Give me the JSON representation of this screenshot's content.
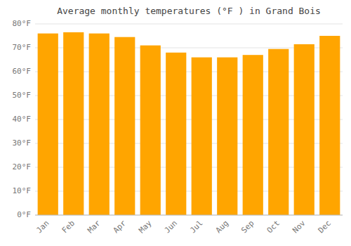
{
  "chart_data": {
    "type": "bar",
    "title": "Average monthly temperatures (°F ) in Grand Bois",
    "categories": [
      "Jan",
      "Feb",
      "Mar",
      "Apr",
      "May",
      "Jun",
      "Jul",
      "Aug",
      "Sep",
      "Oct",
      "Nov",
      "Dec"
    ],
    "values": [
      76.0,
      76.5,
      76.0,
      74.5,
      71.0,
      68.0,
      66.0,
      66.0,
      67.0,
      69.5,
      71.5,
      75.0
    ],
    "color": "#FFA500",
    "ylim": [
      0,
      80
    ],
    "yticks": [
      {
        "value": 0,
        "label": "0°F"
      },
      {
        "value": 10,
        "label": "10°F"
      },
      {
        "value": 20,
        "label": "20°F"
      },
      {
        "value": 30,
        "label": "30°F"
      },
      {
        "value": 40,
        "label": "40°F"
      },
      {
        "value": 50,
        "label": "50°F"
      },
      {
        "value": 60,
        "label": "60°F"
      },
      {
        "value": 70,
        "label": "70°F"
      },
      {
        "value": 80,
        "label": "80°F"
      }
    ],
    "grid": true
  }
}
